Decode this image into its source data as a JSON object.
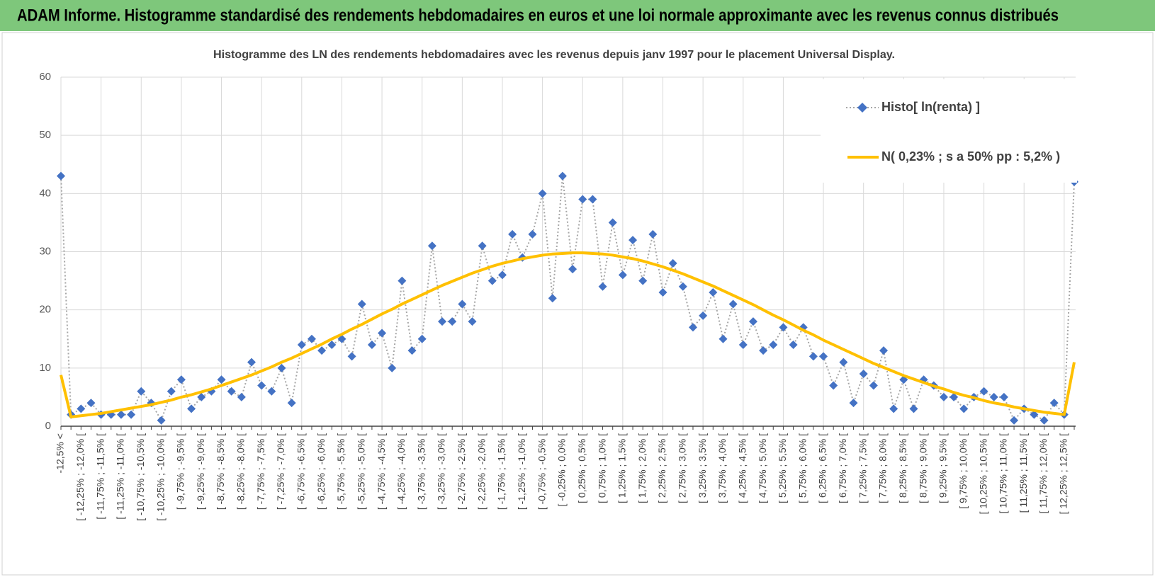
{
  "page_title": "ADAM Informe. Histogramme standardisé des rendements hebdomadaires en euros et une loi normale approximante avec les revenus connus distribués",
  "chart_data": {
    "type": "line",
    "title": "Histogramme des LN des rendements hebdomadaires avec les revenus depuis janv 1997 pour le placement Universal Display.",
    "categories": [
      "-12,5% <",
      null,
      "[ -12,25% ; -12,0% [",
      null,
      "[ -11,75% ; -11,5% [",
      null,
      "[ -11,25% ; -11,0% [",
      null,
      "[ -10,75% ; -10,5% [",
      null,
      "[ -10,25% ; -10,0% [",
      null,
      "[ -9,75% ; -9,5% [",
      null,
      "[ -9,25% ; -9,0% [",
      null,
      "[ -8,75% ; -8,5% [",
      null,
      "[ -8,25% ; -8,0% [",
      null,
      "[ -7,75% ; -7,5% [",
      null,
      "[ -7,25% ; -7,0% [",
      null,
      "[ -6,75% ; -6,5% [",
      null,
      "[ -6,25% ; -6,0% [",
      null,
      "[ -5,75% ; -5,5% [",
      null,
      "[ -5,25% ; -5,0% [",
      null,
      "[ -4,75% ; -4,5% [",
      null,
      "[ -4,25% ; -4,0% [",
      null,
      "[ -3,75% ; -3,5% [",
      null,
      "[ -3,25% ; -3,0% [",
      null,
      "[ -2,75% ; -2,5% [",
      null,
      "[ -2,25% ; -2,0% [",
      null,
      "[ -1,75% ; -1,5% [",
      null,
      "[ -1,25% ; -1,0% [",
      null,
      "[ -0,75% ; -0,5% [",
      null,
      "[ -0,25% ; 0,0% [",
      null,
      "[ 0,25% ; 0,5% [",
      null,
      "[ 0,75% ; 1,0% [",
      null,
      "[ 1,25% ; 1,5% [",
      null,
      "[ 1,75% ; 2,0% [",
      null,
      "[ 2,25% ; 2,5% [",
      null,
      "[ 2,75% ; 3,0% [",
      null,
      "[ 3,25% ; 3,5% [",
      null,
      "[ 3,75% ; 4,0% [",
      null,
      "[ 4,25% ; 4,5% [",
      null,
      "[ 4,75% ; 5,0% [",
      null,
      "[ 5,25% ; 5,5% [",
      null,
      "[ 5,75% ; 6,0% [",
      null,
      "[ 6,25% ; 6,5% [",
      null,
      "[ 6,75% ; 7,0% [",
      null,
      "[ 7,25% ; 7,5% [",
      null,
      "[ 7,75% ; 8,0% [",
      null,
      "[ 8,25% ; 8,5% [",
      null,
      "[ 8,75% ; 9,0% [",
      null,
      "[ 9,25% ; 9,5% [",
      null,
      "[ 9,75% ; 10,0% [",
      null,
      "[ 10,25% ; 10,5% [",
      null,
      "[ 10,75% ; 11,0% [",
      null,
      "[ 11,25% ; 11,5% [",
      null,
      "[ 11,75% ; 12,0% [",
      null,
      "[ 12,25% ; 12,5% [",
      null
    ],
    "series": [
      {
        "name": "Histo[ ln(renta) ]",
        "color": "#4472c4",
        "line_color": "#a6a6a6",
        "values": [
          43,
          2,
          3,
          4,
          2,
          2,
          2,
          2,
          6,
          4,
          1,
          6,
          8,
          3,
          5,
          6,
          8,
          6,
          5,
          11,
          7,
          6,
          10,
          4,
          14,
          15,
          13,
          14,
          15,
          12,
          21,
          14,
          16,
          10,
          25,
          13,
          15,
          31,
          18,
          18,
          21,
          18,
          31,
          25,
          26,
          33,
          29,
          33,
          40,
          22,
          43,
          27,
          39,
          39,
          24,
          35,
          26,
          32,
          25,
          33,
          23,
          28,
          24,
          17,
          19,
          23,
          15,
          21,
          14,
          18,
          13,
          14,
          17,
          14,
          17,
          12,
          12,
          7,
          11,
          4,
          9,
          7,
          13,
          3,
          8,
          3,
          8,
          7,
          5,
          5,
          3,
          5,
          6,
          5,
          5,
          1,
          3,
          2,
          1,
          4,
          2,
          42
        ]
      },
      {
        "name": "N( 0,23% ; s a 50% pp : 5,2% )",
        "color": "#ffc000",
        "values": [
          8.8,
          1.6,
          1.8,
          2.0,
          2.2,
          2.5,
          2.8,
          3.1,
          3.4,
          3.7,
          4.1,
          4.5,
          5.0,
          5.4,
          5.9,
          6.4,
          7.0,
          7.6,
          8.2,
          8.8,
          9.5,
          10.2,
          11.0,
          11.7,
          12.5,
          13.3,
          14.1,
          15.0,
          15.8,
          16.7,
          17.5,
          18.4,
          19.3,
          20.1,
          21.0,
          21.8,
          22.6,
          23.4,
          24.2,
          24.9,
          25.6,
          26.3,
          26.9,
          27.5,
          28.0,
          28.4,
          28.8,
          29.1,
          29.4,
          29.6,
          29.7,
          29.8,
          29.8,
          29.7,
          29.6,
          29.4,
          29.1,
          28.8,
          28.4,
          27.9,
          27.4,
          26.8,
          26.2,
          25.5,
          24.8,
          24.1,
          23.3,
          22.5,
          21.7,
          20.9,
          20.0,
          19.1,
          18.3,
          17.4,
          16.5,
          15.7,
          14.8,
          14.0,
          13.2,
          12.4,
          11.6,
          10.8,
          10.1,
          9.4,
          8.7,
          8.1,
          7.5,
          6.9,
          6.4,
          5.8,
          5.3,
          4.9,
          4.4,
          4.0,
          3.7,
          3.3,
          3.0,
          2.7,
          2.4,
          2.2,
          2.0,
          11.0
        ]
      }
    ],
    "ylim": [
      0,
      60
    ],
    "yticks": [
      0,
      10,
      20,
      30,
      40,
      50,
      60
    ],
    "grid": true,
    "legend": "top-right"
  }
}
